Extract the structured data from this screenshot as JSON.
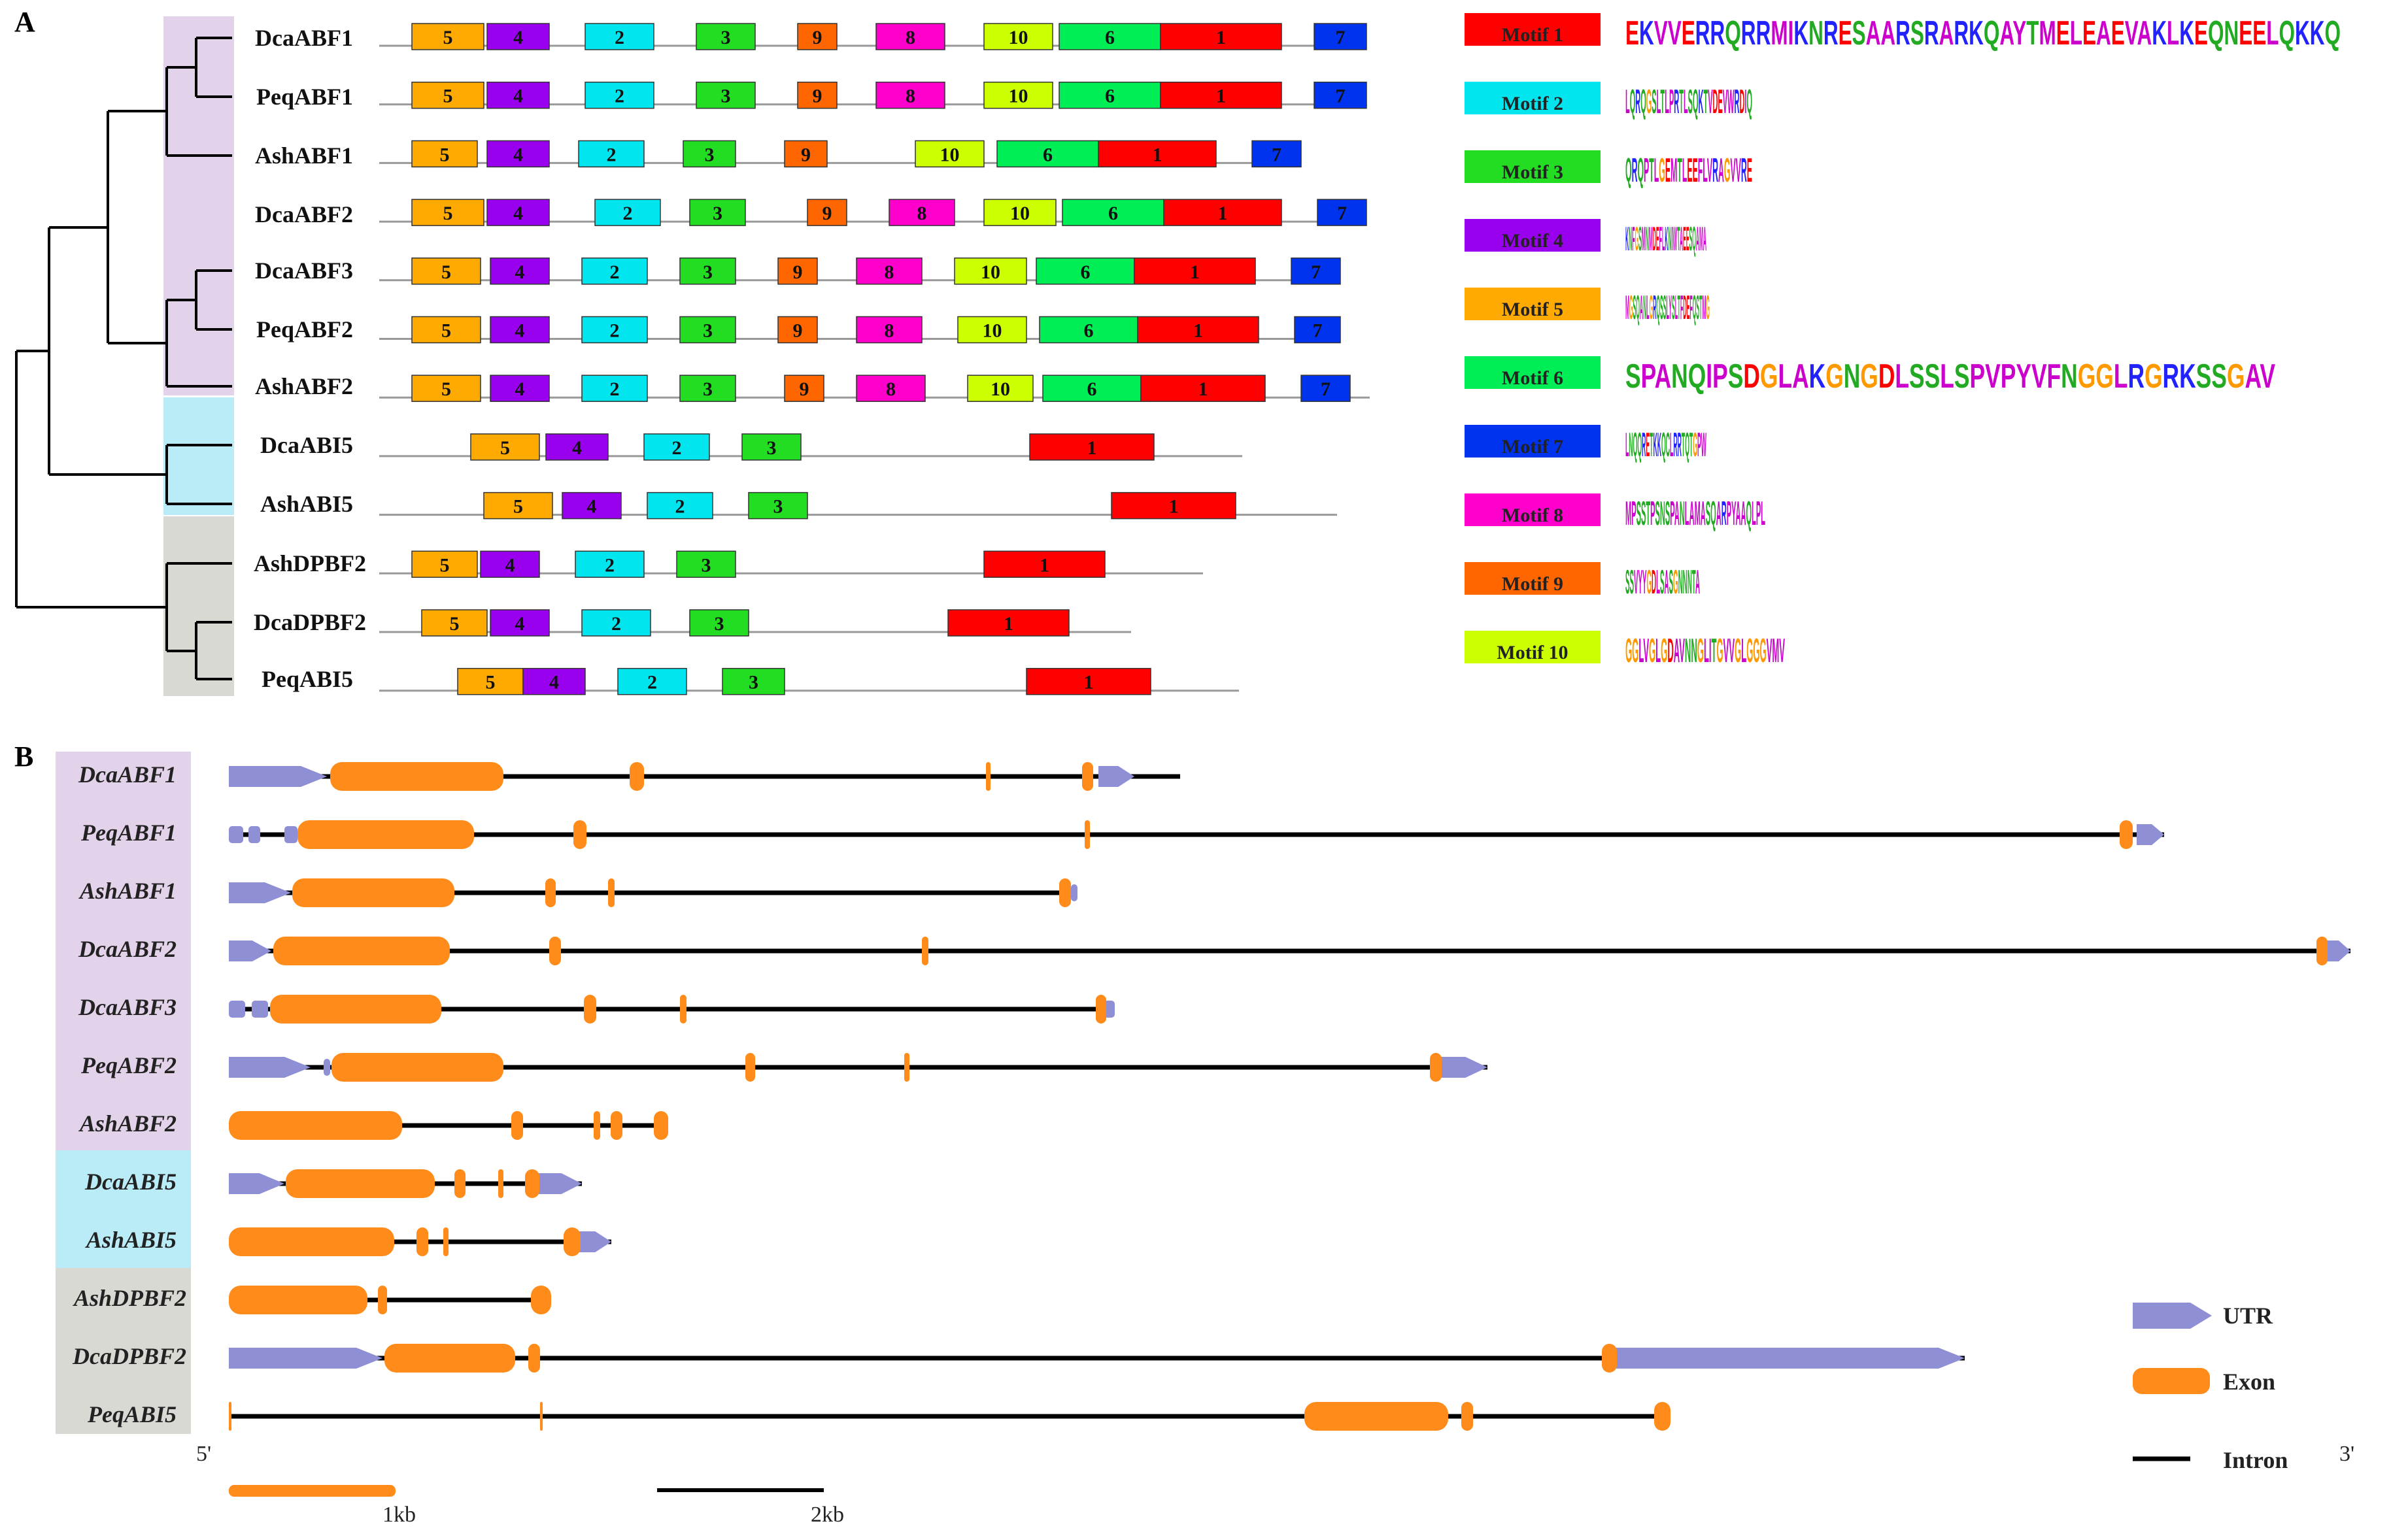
{
  "panel_a": {
    "letter": "A",
    "genes": [
      "DcaABF1",
      "PeqABF1",
      "AshABF1",
      "DcaABF2",
      "DcaABF3",
      "PeqABF2",
      "AshABF2",
      "DcaABI5",
      "AshABI5",
      "AshDPBF2",
      "DcaDPBF2",
      "PeqABI5"
    ],
    "motif_colors": {
      "1": "#ff0000",
      "2": "#00e5ee",
      "3": "#22dd22",
      "4": "#9900ee",
      "5": "#ffaa00",
      "6": "#00ee55",
      "7": "#0033ee",
      "8": "#ff00cc",
      "9": "#ff6600",
      "10": "#ccff00"
    },
    "tracks": [
      {
        "gene": "DcaABF1",
        "line_end": 2075,
        "motifs": [
          [
            "5",
            630,
            740
          ],
          [
            "4",
            745,
            840
          ],
          [
            "2",
            895,
            1000
          ],
          [
            "3",
            1065,
            1155
          ],
          [
            "9",
            1220,
            1280
          ],
          [
            "8",
            1340,
            1445
          ],
          [
            "10",
            1505,
            1610
          ],
          [
            "6",
            1620,
            1775
          ],
          [
            "1",
            1775,
            1960
          ],
          [
            "7",
            2010,
            2090
          ]
        ]
      },
      {
        "gene": "PeqABF1",
        "line_end": 2080,
        "motifs": [
          [
            "5",
            630,
            740
          ],
          [
            "4",
            745,
            840
          ],
          [
            "2",
            895,
            1000
          ],
          [
            "3",
            1065,
            1155
          ],
          [
            "9",
            1220,
            1280
          ],
          [
            "8",
            1340,
            1445
          ],
          [
            "10",
            1505,
            1610
          ],
          [
            "6",
            1620,
            1775
          ],
          [
            "1",
            1775,
            1960
          ],
          [
            "7",
            2010,
            2090
          ]
        ]
      },
      {
        "gene": "AshABF1",
        "line_end": 1990,
        "motifs": [
          [
            "5",
            630,
            730
          ],
          [
            "4",
            745,
            840
          ],
          [
            "2",
            885,
            985
          ],
          [
            "3",
            1045,
            1125
          ],
          [
            "9",
            1200,
            1265
          ],
          [
            "10",
            1400,
            1505
          ],
          [
            "6",
            1525,
            1680
          ],
          [
            "1",
            1680,
            1860
          ],
          [
            "7",
            1915,
            1990
          ]
        ]
      },
      {
        "gene": "DcaABF2",
        "line_end": 2090,
        "motifs": [
          [
            "5",
            630,
            740
          ],
          [
            "4",
            745,
            840
          ],
          [
            "2",
            910,
            1010
          ],
          [
            "3",
            1055,
            1140
          ],
          [
            "9",
            1235,
            1295
          ],
          [
            "8",
            1360,
            1460
          ],
          [
            "10",
            1505,
            1615
          ],
          [
            "6",
            1625,
            1780
          ],
          [
            "1",
            1780,
            1960
          ],
          [
            "7",
            2015,
            2090
          ]
        ]
      },
      {
        "gene": "DcaABF3",
        "line_end": 2050,
        "motifs": [
          [
            "5",
            630,
            735
          ],
          [
            "4",
            750,
            840
          ],
          [
            "2",
            890,
            990
          ],
          [
            "3",
            1040,
            1125
          ],
          [
            "9",
            1190,
            1250
          ],
          [
            "8",
            1310,
            1410
          ],
          [
            "10",
            1460,
            1570
          ],
          [
            "6",
            1585,
            1735
          ],
          [
            "1",
            1735,
            1920
          ],
          [
            "7",
            1975,
            2050
          ]
        ]
      },
      {
        "gene": "PeqABF2",
        "line_end": 2050,
        "motifs": [
          [
            "5",
            630,
            735
          ],
          [
            "4",
            750,
            840
          ],
          [
            "2",
            890,
            990
          ],
          [
            "3",
            1040,
            1125
          ],
          [
            "9",
            1190,
            1250
          ],
          [
            "8",
            1310,
            1410
          ],
          [
            "10",
            1465,
            1570
          ],
          [
            "6",
            1590,
            1740
          ],
          [
            "1",
            1740,
            1925
          ],
          [
            "7",
            1980,
            2050
          ]
        ]
      },
      {
        "gene": "AshABF2",
        "line_end": 2095,
        "motifs": [
          [
            "5",
            630,
            735
          ],
          [
            "4",
            750,
            840
          ],
          [
            "2",
            890,
            990
          ],
          [
            "3",
            1040,
            1125
          ],
          [
            "9",
            1200,
            1260
          ],
          [
            "8",
            1310,
            1415
          ],
          [
            "10",
            1480,
            1580
          ],
          [
            "6",
            1595,
            1745
          ],
          [
            "1",
            1745,
            1935
          ],
          [
            "7",
            1990,
            2065
          ]
        ]
      },
      {
        "gene": "DcaABI5",
        "line_end": 1900,
        "motifs": [
          [
            "5",
            720,
            825
          ],
          [
            "4",
            835,
            930
          ],
          [
            "2",
            985,
            1085
          ],
          [
            "3",
            1135,
            1225
          ],
          [
            "1",
            1575,
            1765
          ]
        ]
      },
      {
        "gene": "AshABI5",
        "line_end": 2045,
        "motifs": [
          [
            "5",
            740,
            845
          ],
          [
            "4",
            860,
            950
          ],
          [
            "2",
            990,
            1090
          ],
          [
            "3",
            1145,
            1235
          ],
          [
            "1",
            1700,
            1890
          ]
        ]
      },
      {
        "gene": "AshDPBF2",
        "line_end": 1840,
        "motifs": [
          [
            "5",
            630,
            730
          ],
          [
            "4",
            735,
            825
          ],
          [
            "2",
            880,
            985
          ],
          [
            "3",
            1035,
            1125
          ],
          [
            "1",
            1505,
            1690
          ]
        ]
      },
      {
        "gene": "DcaDPBF2",
        "line_end": 1730,
        "motifs": [
          [
            "5",
            645,
            745
          ],
          [
            "4",
            750,
            840
          ],
          [
            "2",
            890,
            995
          ],
          [
            "3",
            1055,
            1145
          ],
          [
            "1",
            1450,
            1635
          ]
        ]
      },
      {
        "gene": "PeqABI5",
        "line_end": 1895,
        "motifs": [
          [
            "5",
            700,
            800
          ],
          [
            "4",
            800,
            895
          ],
          [
            "2",
            945,
            1050
          ],
          [
            "3",
            1105,
            1200
          ],
          [
            "1",
            1570,
            1760
          ]
        ]
      }
    ],
    "legend": [
      {
        "id": "1",
        "label": "Motif 1",
        "seq": "EKVVERRQRRMIKNRESAARSRARKQAYTMELEAEVAKLKEQNEELQKKQ"
      },
      {
        "id": "2",
        "label": "Motif 2",
        "seq": "LQRQGSLTLPRTLSQKTVDEVWRDIQ"
      },
      {
        "id": "3",
        "label": "Motif 3",
        "seq": "QRQPTLGEMTLEEFLVRAGVVRE"
      },
      {
        "id": "4",
        "label": "Motif 4",
        "seq": "KNFGSMNMDEFLKNIWTAEESQAMA"
      },
      {
        "id": "5",
        "label": "Motif 5",
        "seq": "MGSQANLGRQSSLYSLTFDEFQSTMG"
      },
      {
        "id": "6",
        "label": "Motif 6",
        "seq": "SPANQIPSDGLAKGNGDLSSLSPVPYVFNGGLRGRKSSGAV"
      },
      {
        "id": "7",
        "label": "Motif 7",
        "seq": "LNQQRETKKQCLRRTQTGPW"
      },
      {
        "id": "8",
        "label": "Motif 8",
        "seq": "MPSSTPSNSPANLAMASQARPYAAQLPL"
      },
      {
        "id": "9",
        "label": "Motif 9",
        "seq": "SSVYYGDLSASGNNNTA"
      },
      {
        "id": "10",
        "label": "Motif 10",
        "seq": "GGLVGLGDAVNNGLITGVVGLGGGVMV"
      }
    ]
  },
  "panel_b": {
    "letter": "B",
    "genes": [
      "DcaABF1",
      "PeqABF1",
      "AshABF1",
      "DcaABF2",
      "DcaABF3",
      "PeqABF2",
      "AshABF2",
      "DcaABI5",
      "AshABI5",
      "AshDPBF2",
      "DcaDPBF2",
      "PeqABI5"
    ],
    "utr_color": "#8f8fd6",
    "exon_color": "#ff8c1a",
    "structures": [
      {
        "gene": "DcaABF1",
        "line": [
          350,
          1805
        ],
        "utr": [
          [
            350,
            500,
            "arrow-end"
          ],
          [
            1680,
            1735,
            "arrow"
          ]
        ],
        "exons": [
          [
            505,
            770
          ],
          [
            963,
            985
          ],
          [
            1508,
            1515
          ],
          [
            1655,
            1672
          ]
        ]
      },
      {
        "gene": "PeqABF1",
        "line": [
          350,
          3310
        ],
        "utr": [
          [
            350,
            372,
            "block"
          ],
          [
            380,
            398,
            "block"
          ],
          [
            435,
            455,
            "block"
          ],
          [
            3268,
            3310,
            "arrow"
          ]
        ],
        "exons": [
          [
            455,
            725
          ],
          [
            877,
            897
          ],
          [
            1659,
            1667
          ],
          [
            3242,
            3262
          ]
        ]
      },
      {
        "gene": "AshABF1",
        "line": [
          350,
          1648
        ],
        "utr": [
          [
            350,
            445,
            "arrow"
          ],
          [
            1638,
            1648,
            "block"
          ]
        ],
        "exons": [
          [
            447,
            695
          ],
          [
            834,
            850
          ],
          [
            930,
            940
          ],
          [
            1620,
            1638
          ]
        ]
      },
      {
        "gene": "DcaABF2",
        "line": [
          350,
          3595
        ],
        "utr": [
          [
            350,
            415,
            "arrow"
          ],
          [
            3555,
            3595,
            "arrow"
          ]
        ],
        "exons": [
          [
            418,
            688
          ],
          [
            840,
            858
          ],
          [
            1410,
            1420
          ],
          [
            3543,
            3560
          ]
        ]
      },
      {
        "gene": "DcaABF3",
        "line": [
          350,
          1705
        ],
        "utr": [
          [
            350,
            375,
            "block"
          ],
          [
            385,
            410,
            "block"
          ],
          [
            1688,
            1705,
            "block"
          ]
        ],
        "exons": [
          [
            413,
            675
          ],
          [
            893,
            912
          ],
          [
            1040,
            1050
          ],
          [
            1676,
            1692
          ]
        ]
      },
      {
        "gene": "PeqABF2",
        "line": [
          350,
          2275
        ],
        "utr": [
          [
            350,
            475,
            "arrow"
          ],
          [
            495,
            505,
            "block"
          ],
          [
            2200,
            2275,
            "arrow"
          ]
        ],
        "exons": [
          [
            507,
            770
          ],
          [
            1140,
            1155
          ],
          [
            1383,
            1391
          ],
          [
            2187,
            2205
          ]
        ]
      },
      {
        "gene": "AshABF2",
        "line": [
          350,
          1022
        ],
        "utr": [],
        "exons": [
          [
            350,
            615
          ],
          [
            782,
            800
          ],
          [
            908,
            918
          ],
          [
            934,
            952
          ],
          [
            1000,
            1022
          ]
        ]
      },
      {
        "gene": "DcaABI5",
        "line": [
          350,
          890
        ],
        "utr": [
          [
            350,
            435,
            "arrow"
          ],
          [
            820,
            890,
            "arrow"
          ]
        ],
        "exons": [
          [
            437,
            665
          ],
          [
            695,
            712
          ],
          [
            762,
            770
          ],
          [
            803,
            825
          ]
        ]
      },
      {
        "gene": "AshABI5",
        "line": [
          350,
          935
        ],
        "utr": [
          [
            880,
            935,
            "arrow"
          ]
        ],
        "exons": [
          [
            350,
            603
          ],
          [
            637,
            655
          ],
          [
            678,
            686
          ],
          [
            862,
            888
          ]
        ]
      },
      {
        "gene": "AshDPBF2",
        "line": [
          350,
          843
        ],
        "utr": [],
        "exons": [
          [
            350,
            562
          ],
          [
            578,
            592
          ],
          [
            812,
            843
          ]
        ]
      },
      {
        "gene": "DcaDPBF2",
        "line": [
          350,
          3005
        ],
        "utr": [
          [
            350,
            585,
            "arrow"
          ],
          [
            2470,
            3005,
            "arrow"
          ]
        ],
        "exons": [
          [
            588,
            788
          ],
          [
            808,
            826
          ],
          [
            2450,
            2473
          ]
        ]
      },
      {
        "gene": "PeqABI5",
        "line": [
          350,
          2555
        ],
        "utr": [],
        "exons": [
          [
            350,
            353
          ],
          [
            826,
            830
          ],
          [
            1995,
            2215
          ],
          [
            2235,
            2253
          ],
          [
            2530,
            2555
          ]
        ]
      }
    ],
    "end5": "5'",
    "end3": "3'",
    "legend": {
      "utr": "UTR",
      "exon": "Exon",
      "intron": "Intron"
    },
    "scale": {
      "kb1": "1kb",
      "kb2": "2kb"
    }
  }
}
